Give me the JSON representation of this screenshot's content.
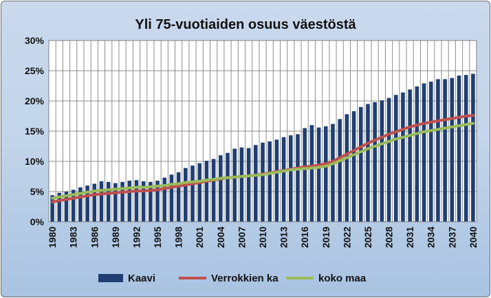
{
  "chart_data": {
    "type": "bar+line",
    "title": "Yli 75-vuotiaiden osuus väestöstä",
    "xlabel": "",
    "ylabel": "",
    "ylim": [
      0,
      0.3
    ],
    "yticks": [
      "0%",
      "5%",
      "10%",
      "15%",
      "20%",
      "25%",
      "30%"
    ],
    "x": [
      1980,
      1981,
      1982,
      1983,
      1984,
      1985,
      1986,
      1987,
      1988,
      1989,
      1990,
      1991,
      1992,
      1993,
      1994,
      1995,
      1996,
      1997,
      1998,
      1999,
      2000,
      2001,
      2002,
      2003,
      2004,
      2005,
      2006,
      2007,
      2008,
      2009,
      2010,
      2011,
      2012,
      2013,
      2014,
      2015,
      2016,
      2017,
      2018,
      2019,
      2020,
      2021,
      2022,
      2023,
      2024,
      2025,
      2026,
      2027,
      2028,
      2029,
      2030,
      2031,
      2032,
      2033,
      2034,
      2035,
      2036,
      2037,
      2038,
      2039,
      2040
    ],
    "xtick_labels": [
      "1980",
      "1983",
      "1986",
      "1989",
      "1992",
      "1995",
      "1998",
      "2001",
      "2004",
      "2007",
      "2010",
      "2013",
      "2016",
      "2019",
      "2022",
      "2025",
      "2028",
      "2031",
      "2034",
      "2037",
      "2040"
    ],
    "grid": true,
    "legend": "bottom",
    "series": [
      {
        "name": "Kaavi",
        "kind": "bar",
        "color": "#1f3f73",
        "values": [
          0.044,
          0.048,
          0.05,
          0.053,
          0.057,
          0.06,
          0.063,
          0.067,
          0.066,
          0.064,
          0.066,
          0.068,
          0.069,
          0.067,
          0.066,
          0.068,
          0.073,
          0.078,
          0.082,
          0.089,
          0.093,
          0.097,
          0.101,
          0.104,
          0.11,
          0.114,
          0.121,
          0.123,
          0.122,
          0.127,
          0.131,
          0.133,
          0.136,
          0.14,
          0.143,
          0.145,
          0.155,
          0.16,
          0.156,
          0.158,
          0.162,
          0.17,
          0.178,
          0.183,
          0.19,
          0.195,
          0.198,
          0.201,
          0.205,
          0.21,
          0.214,
          0.219,
          0.224,
          0.229,
          0.232,
          0.236,
          0.236,
          0.238,
          0.242,
          0.243,
          0.245
        ]
      },
      {
        "name": "Verrokkien ka",
        "kind": "line",
        "color": "#c0504d",
        "values": [
          0.033,
          0.035,
          0.037,
          0.039,
          0.041,
          0.043,
          0.045,
          0.046,
          0.047,
          0.048,
          0.049,
          0.05,
          0.051,
          0.051,
          0.052,
          0.053,
          0.055,
          0.057,
          0.059,
          0.061,
          0.063,
          0.065,
          0.067,
          0.069,
          0.071,
          0.073,
          0.074,
          0.075,
          0.076,
          0.077,
          0.079,
          0.081,
          0.083,
          0.085,
          0.087,
          0.089,
          0.091,
          0.092,
          0.094,
          0.096,
          0.1,
          0.106,
          0.112,
          0.118,
          0.124,
          0.13,
          0.135,
          0.14,
          0.145,
          0.149,
          0.153,
          0.157,
          0.16,
          0.163,
          0.165,
          0.167,
          0.169,
          0.171,
          0.173,
          0.175,
          0.176
        ]
      },
      {
        "name": "koko maa",
        "kind": "line",
        "color": "#9bbb59",
        "values": [
          0.039,
          0.041,
          0.043,
          0.045,
          0.047,
          0.049,
          0.051,
          0.052,
          0.053,
          0.054,
          0.055,
          0.056,
          0.057,
          0.057,
          0.058,
          0.059,
          0.06,
          0.062,
          0.063,
          0.065,
          0.066,
          0.067,
          0.069,
          0.07,
          0.072,
          0.073,
          0.074,
          0.075,
          0.076,
          0.077,
          0.078,
          0.08,
          0.082,
          0.084,
          0.086,
          0.087,
          0.088,
          0.089,
          0.09,
          0.092,
          0.096,
          0.101,
          0.106,
          0.111,
          0.116,
          0.121,
          0.125,
          0.129,
          0.133,
          0.137,
          0.14,
          0.143,
          0.146,
          0.149,
          0.151,
          0.153,
          0.155,
          0.157,
          0.159,
          0.161,
          0.163
        ]
      }
    ]
  }
}
